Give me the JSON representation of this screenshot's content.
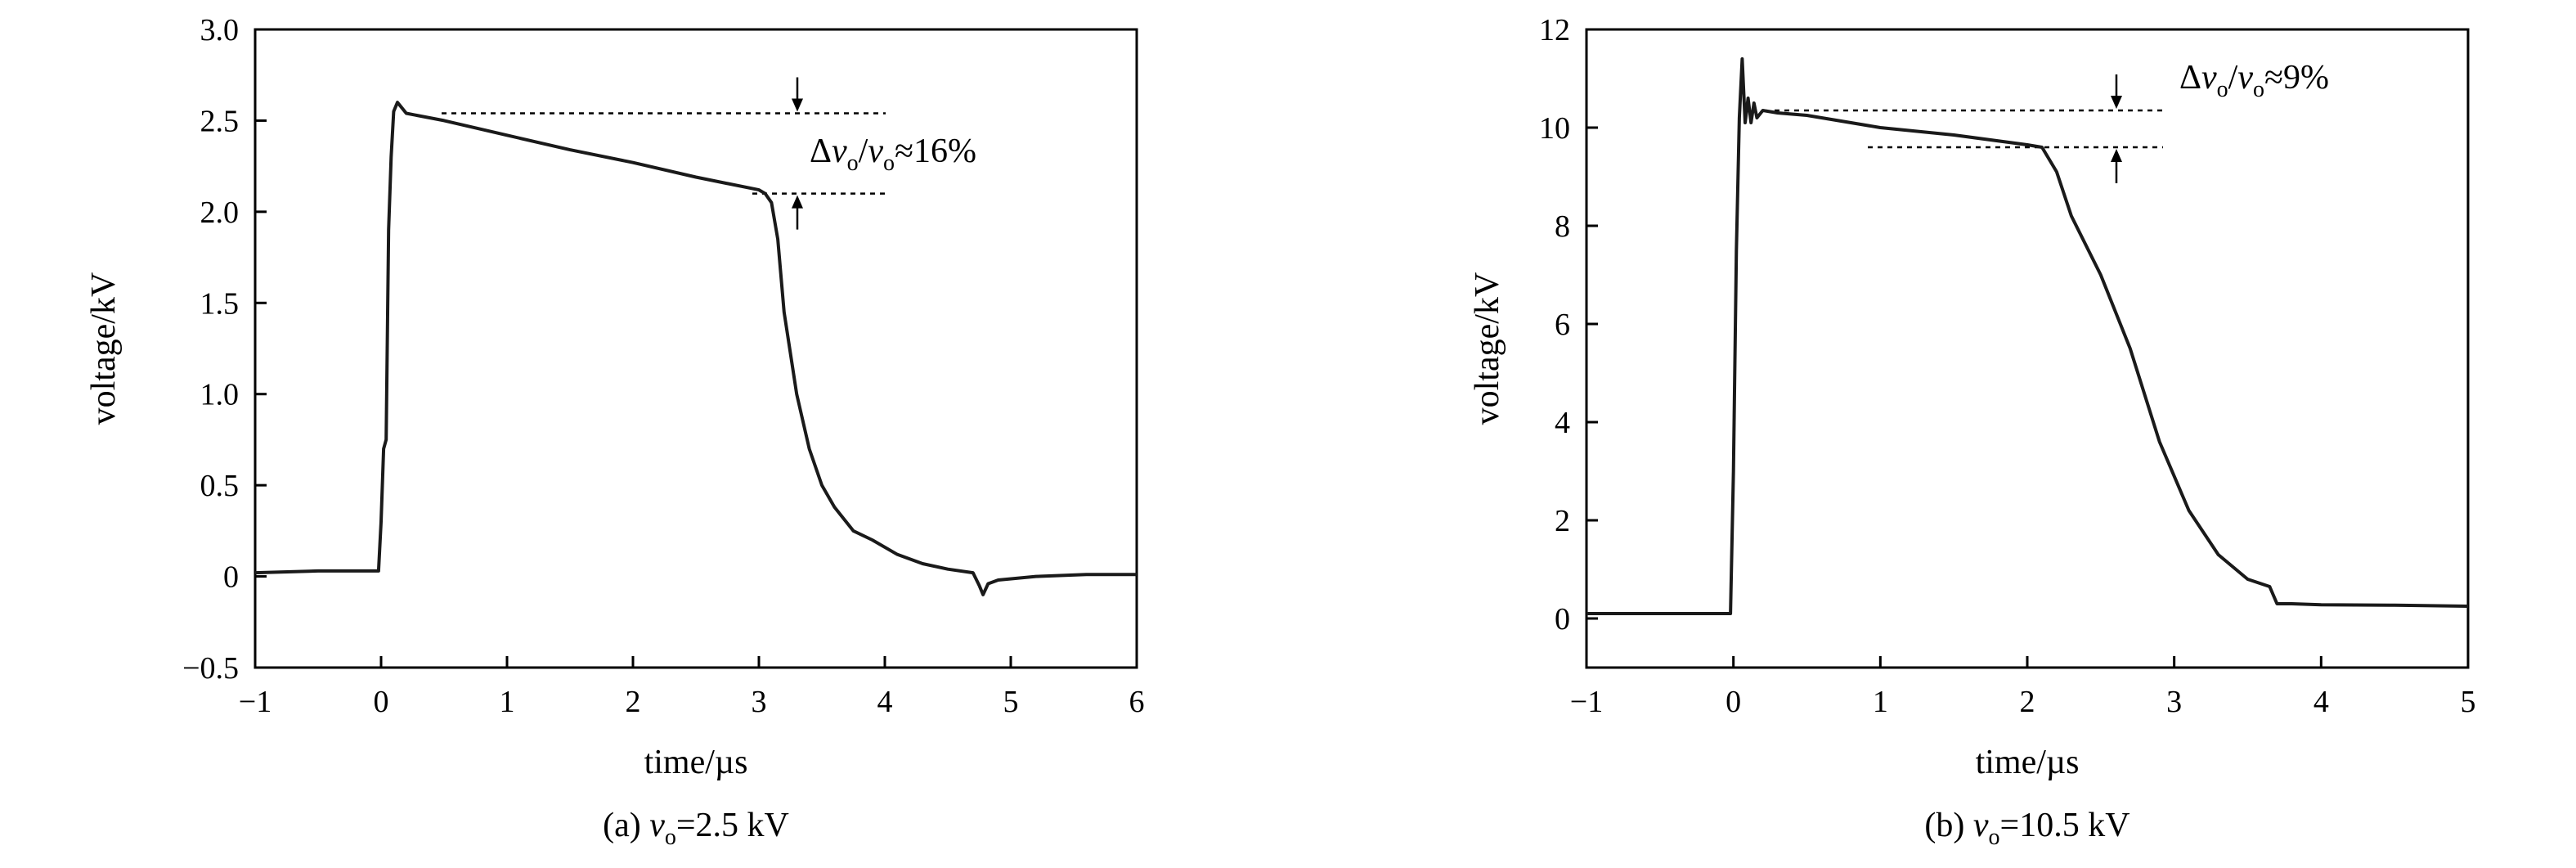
{
  "chart_data": [
    {
      "type": "line",
      "xlabel": "time/µs",
      "ylabel": "voltage/kV",
      "xlim": [
        -1,
        6
      ],
      "ylim": [
        -0.5,
        3.0
      ],
      "xticks": [
        -1,
        0,
        1,
        2,
        3,
        4,
        5,
        6
      ],
      "yticks": [
        -0.5,
        0,
        0.5,
        1.0,
        1.5,
        2.0,
        2.5,
        3.0
      ],
      "xtick_labels": [
        "−1",
        "0",
        "1",
        "2",
        "3",
        "4",
        "5",
        "6"
      ],
      "ytick_labels": [
        "−0.5",
        "0",
        "0.5",
        "1.0",
        "1.5",
        "2.0",
        "2.5",
        "3.0"
      ],
      "grid": false,
      "caption": {
        "prefix": "(a) ",
        "var": "v",
        "sub": "o",
        "suffix": "=2.5 kV"
      },
      "annotation": {
        "delta": "Δ",
        "var": "v",
        "sub": "o",
        "slash": "/",
        "value": "≈16%",
        "upper": 2.54,
        "lower": 2.1
      },
      "series": [
        {
          "color": "#1a1a1a",
          "x": [
            -1.0,
            -0.5,
            -0.02,
            0.0,
            0.02,
            0.04,
            0.06,
            0.08,
            0.1,
            0.13,
            0.2,
            0.5,
            1.0,
            1.5,
            2.0,
            2.5,
            3.0,
            3.05,
            3.1,
            3.15,
            3.2,
            3.3,
            3.4,
            3.5,
            3.6,
            3.75,
            3.9,
            4.1,
            4.3,
            4.5,
            4.7,
            4.75,
            4.78,
            4.82,
            4.9,
            5.2,
            5.6,
            6.0
          ],
          "y": [
            0.02,
            0.03,
            0.03,
            0.3,
            0.7,
            0.75,
            1.9,
            2.3,
            2.55,
            2.6,
            2.54,
            2.5,
            2.42,
            2.34,
            2.27,
            2.19,
            2.12,
            2.1,
            2.05,
            1.85,
            1.45,
            1.0,
            0.7,
            0.5,
            0.38,
            0.25,
            0.2,
            0.12,
            0.07,
            0.04,
            0.02,
            -0.05,
            -0.1,
            -0.04,
            -0.02,
            0.0,
            0.01,
            0.01
          ]
        }
      ]
    },
    {
      "type": "line",
      "xlabel": "time/µs",
      "ylabel": "voltage/kV",
      "xlim": [
        -1,
        5
      ],
      "ylim": [
        -1,
        12
      ],
      "xticks": [
        -1,
        0,
        1,
        2,
        3,
        4,
        5
      ],
      "yticks": [
        0,
        2,
        4,
        6,
        8,
        10,
        12
      ],
      "xtick_labels": [
        "−1",
        "0",
        "1",
        "2",
        "3",
        "4",
        "5"
      ],
      "ytick_labels": [
        "0",
        "2",
        "4",
        "6",
        "8",
        "10",
        "12"
      ],
      "grid": false,
      "caption": {
        "prefix": "(b) ",
        "var": "v",
        "sub": "o",
        "suffix": "=10.5 kV"
      },
      "annotation": {
        "delta": "Δ",
        "var": "v",
        "sub": "o",
        "slash": "/",
        "value": "≈9%",
        "upper": 10.35,
        "lower": 9.6
      },
      "series": [
        {
          "color": "#1a1a1a",
          "x": [
            -1.0,
            -0.5,
            -0.02,
            0.0,
            0.02,
            0.04,
            0.06,
            0.08,
            0.1,
            0.12,
            0.14,
            0.16,
            0.2,
            0.3,
            0.5,
            1.0,
            1.5,
            2.0,
            2.1,
            2.2,
            2.3,
            2.5,
            2.7,
            2.9,
            3.1,
            3.3,
            3.5,
            3.65,
            3.7,
            3.8,
            4.0,
            4.5,
            5.0
          ],
          "y": [
            0.1,
            0.1,
            0.1,
            3.0,
            7.5,
            10.2,
            11.4,
            10.1,
            10.6,
            10.1,
            10.5,
            10.2,
            10.35,
            10.3,
            10.25,
            10.0,
            9.85,
            9.65,
            9.6,
            9.1,
            8.2,
            7.0,
            5.5,
            3.6,
            2.2,
            1.3,
            0.8,
            0.65,
            0.3,
            0.3,
            0.28,
            0.27,
            0.25
          ]
        }
      ]
    }
  ]
}
